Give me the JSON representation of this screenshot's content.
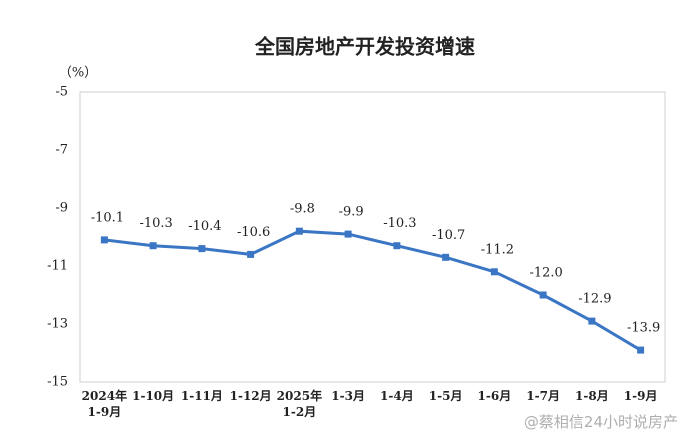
{
  "chart_data": {
    "type": "line",
    "title": "全国房地产开发投资增速",
    "y_unit": "（%）",
    "categories": [
      "2024年\n1-9月",
      "1-10月",
      "1-11月",
      "1-12月",
      "2025年\n1-2月",
      "1-3月",
      "1-4月",
      "1-5月",
      "1-6月",
      "1-7月",
      "1-8月",
      "1-9月"
    ],
    "values": [
      -10.1,
      -10.3,
      -10.4,
      -10.6,
      -9.8,
      -9.9,
      -10.3,
      -10.7,
      -11.2,
      -12.0,
      -12.9,
      -13.9
    ],
    "value_labels": [
      "-10.1",
      "-10.3",
      "-10.4",
      "-10.6",
      "-9.8",
      "-9.9",
      "-10.3",
      "-10.7",
      "-11.2",
      "-12.0",
      "-12.9",
      "-13.9"
    ],
    "color": "#3a76c4",
    "ylim": [
      -15,
      -5
    ],
    "yticks": [
      -5,
      -7,
      -9,
      -11,
      -13,
      -15
    ],
    "grid": false,
    "watermark": "@蔡相信24小时说房产"
  }
}
